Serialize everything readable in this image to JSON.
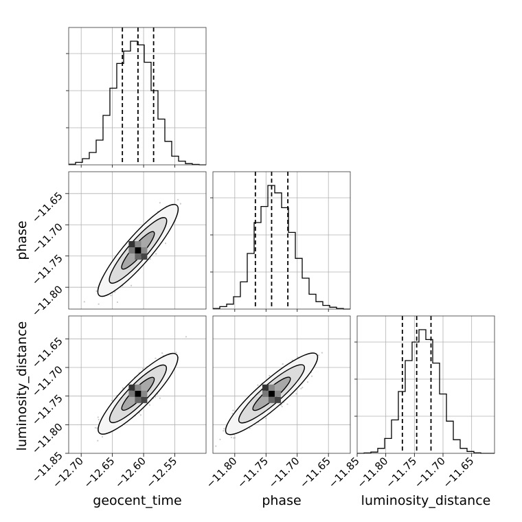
{
  "chart_data": {
    "type": "corner",
    "parameters": [
      "geocent_time",
      "phase",
      "luminosity_distance"
    ],
    "xlabels": [
      "geocent_time",
      "phase",
      "luminosity_distance"
    ],
    "ylabels": [
      "",
      "phase",
      "luminosity_distance"
    ],
    "ranges": [
      [
        -12.72,
        -12.5
      ],
      [
        -11.835,
        -11.615
      ],
      [
        -11.85,
        -11.61
      ]
    ],
    "ticks": [
      [
        -12.7,
        -12.65,
        -12.6,
        -12.55
      ],
      [
        -11.8,
        -11.75,
        -11.7,
        -11.65
      ],
      [
        -11.85,
        -11.8,
        -11.75,
        -11.7,
        -11.65
      ]
    ],
    "tick_labels": [
      [
        "−12.70",
        "−12.65",
        "−12.60",
        "−12.55"
      ],
      [
        "−11.80",
        "−11.75",
        "−11.70",
        "−11.65"
      ],
      [
        "−11.85",
        "−11.80",
        "−11.75",
        "−11.70",
        "−11.65"
      ]
    ],
    "quantiles": [
      [
        -12.634,
        -12.609,
        -12.584
      ],
      [
        -11.767,
        -11.741,
        -11.715
      ],
      [
        -11.771,
        -11.746,
        -11.721
      ]
    ],
    "histograms": [
      {
        "parameter": "geocent_time",
        "bin_edges": [
          -12.72,
          -12.709,
          -12.698,
          -12.687,
          -12.676,
          -12.665,
          -12.654,
          -12.643,
          -12.632,
          -12.621,
          -12.61,
          -12.599,
          -12.588,
          -12.577,
          -12.566,
          -12.555,
          -12.544,
          -12.533,
          -12.522,
          -12.511,
          -12.5
        ],
        "counts": [
          0.005,
          0.02,
          0.05,
          0.1,
          0.2,
          0.4,
          0.62,
          0.82,
          0.92,
          1.0,
          0.97,
          0.83,
          0.6,
          0.37,
          0.19,
          0.07,
          0.03,
          0.01,
          0.003,
          0
        ]
      },
      {
        "parameter": "phase",
        "bin_edges": [
          -11.835,
          -11.824,
          -11.813,
          -11.802,
          -11.791,
          -11.78,
          -11.769,
          -11.758,
          -11.747,
          -11.736,
          -11.725,
          -11.714,
          -11.703,
          -11.692,
          -11.681,
          -11.67,
          -11.659,
          -11.648,
          -11.637,
          -11.626,
          -11.615
        ],
        "counts": [
          0.005,
          0.02,
          0.04,
          0.1,
          0.22,
          0.45,
          0.7,
          0.83,
          1.0,
          0.94,
          0.82,
          0.62,
          0.41,
          0.25,
          0.12,
          0.06,
          0.03,
          0.015,
          0.005,
          0
        ]
      },
      {
        "parameter": "luminosity_distance",
        "bin_edges": [
          -11.85,
          -11.838,
          -11.826,
          -11.814,
          -11.802,
          -11.79,
          -11.778,
          -11.766,
          -11.754,
          -11.742,
          -11.73,
          -11.718,
          -11.706,
          -11.694,
          -11.682,
          -11.67,
          -11.658,
          -11.646,
          -11.634,
          -11.622,
          -11.61
        ],
        "counts": [
          0,
          0.003,
          0.01,
          0.04,
          0.12,
          0.27,
          0.5,
          0.75,
          0.9,
          1.0,
          0.92,
          0.73,
          0.48,
          0.26,
          0.11,
          0.04,
          0.015,
          0.004,
          0,
          0
        ]
      }
    ],
    "pairs": [
      {
        "x": "geocent_time",
        "y": "phase",
        "mean": [
          -12.609,
          -11.741
        ],
        "sd": [
          0.0185,
          0.0215
        ],
        "rho": 0.88
      },
      {
        "x": "geocent_time",
        "y": "luminosity_distance",
        "mean": [
          -12.609,
          -11.746
        ],
        "sd": [
          0.0185,
          0.0205
        ],
        "rho": 0.86
      },
      {
        "x": "phase",
        "y": "luminosity_distance",
        "mean": [
          -11.741,
          -11.746
        ],
        "sd": [
          0.0215,
          0.0205
        ],
        "rho": 0.88
      }
    ],
    "grid": true,
    "legend": "none"
  }
}
